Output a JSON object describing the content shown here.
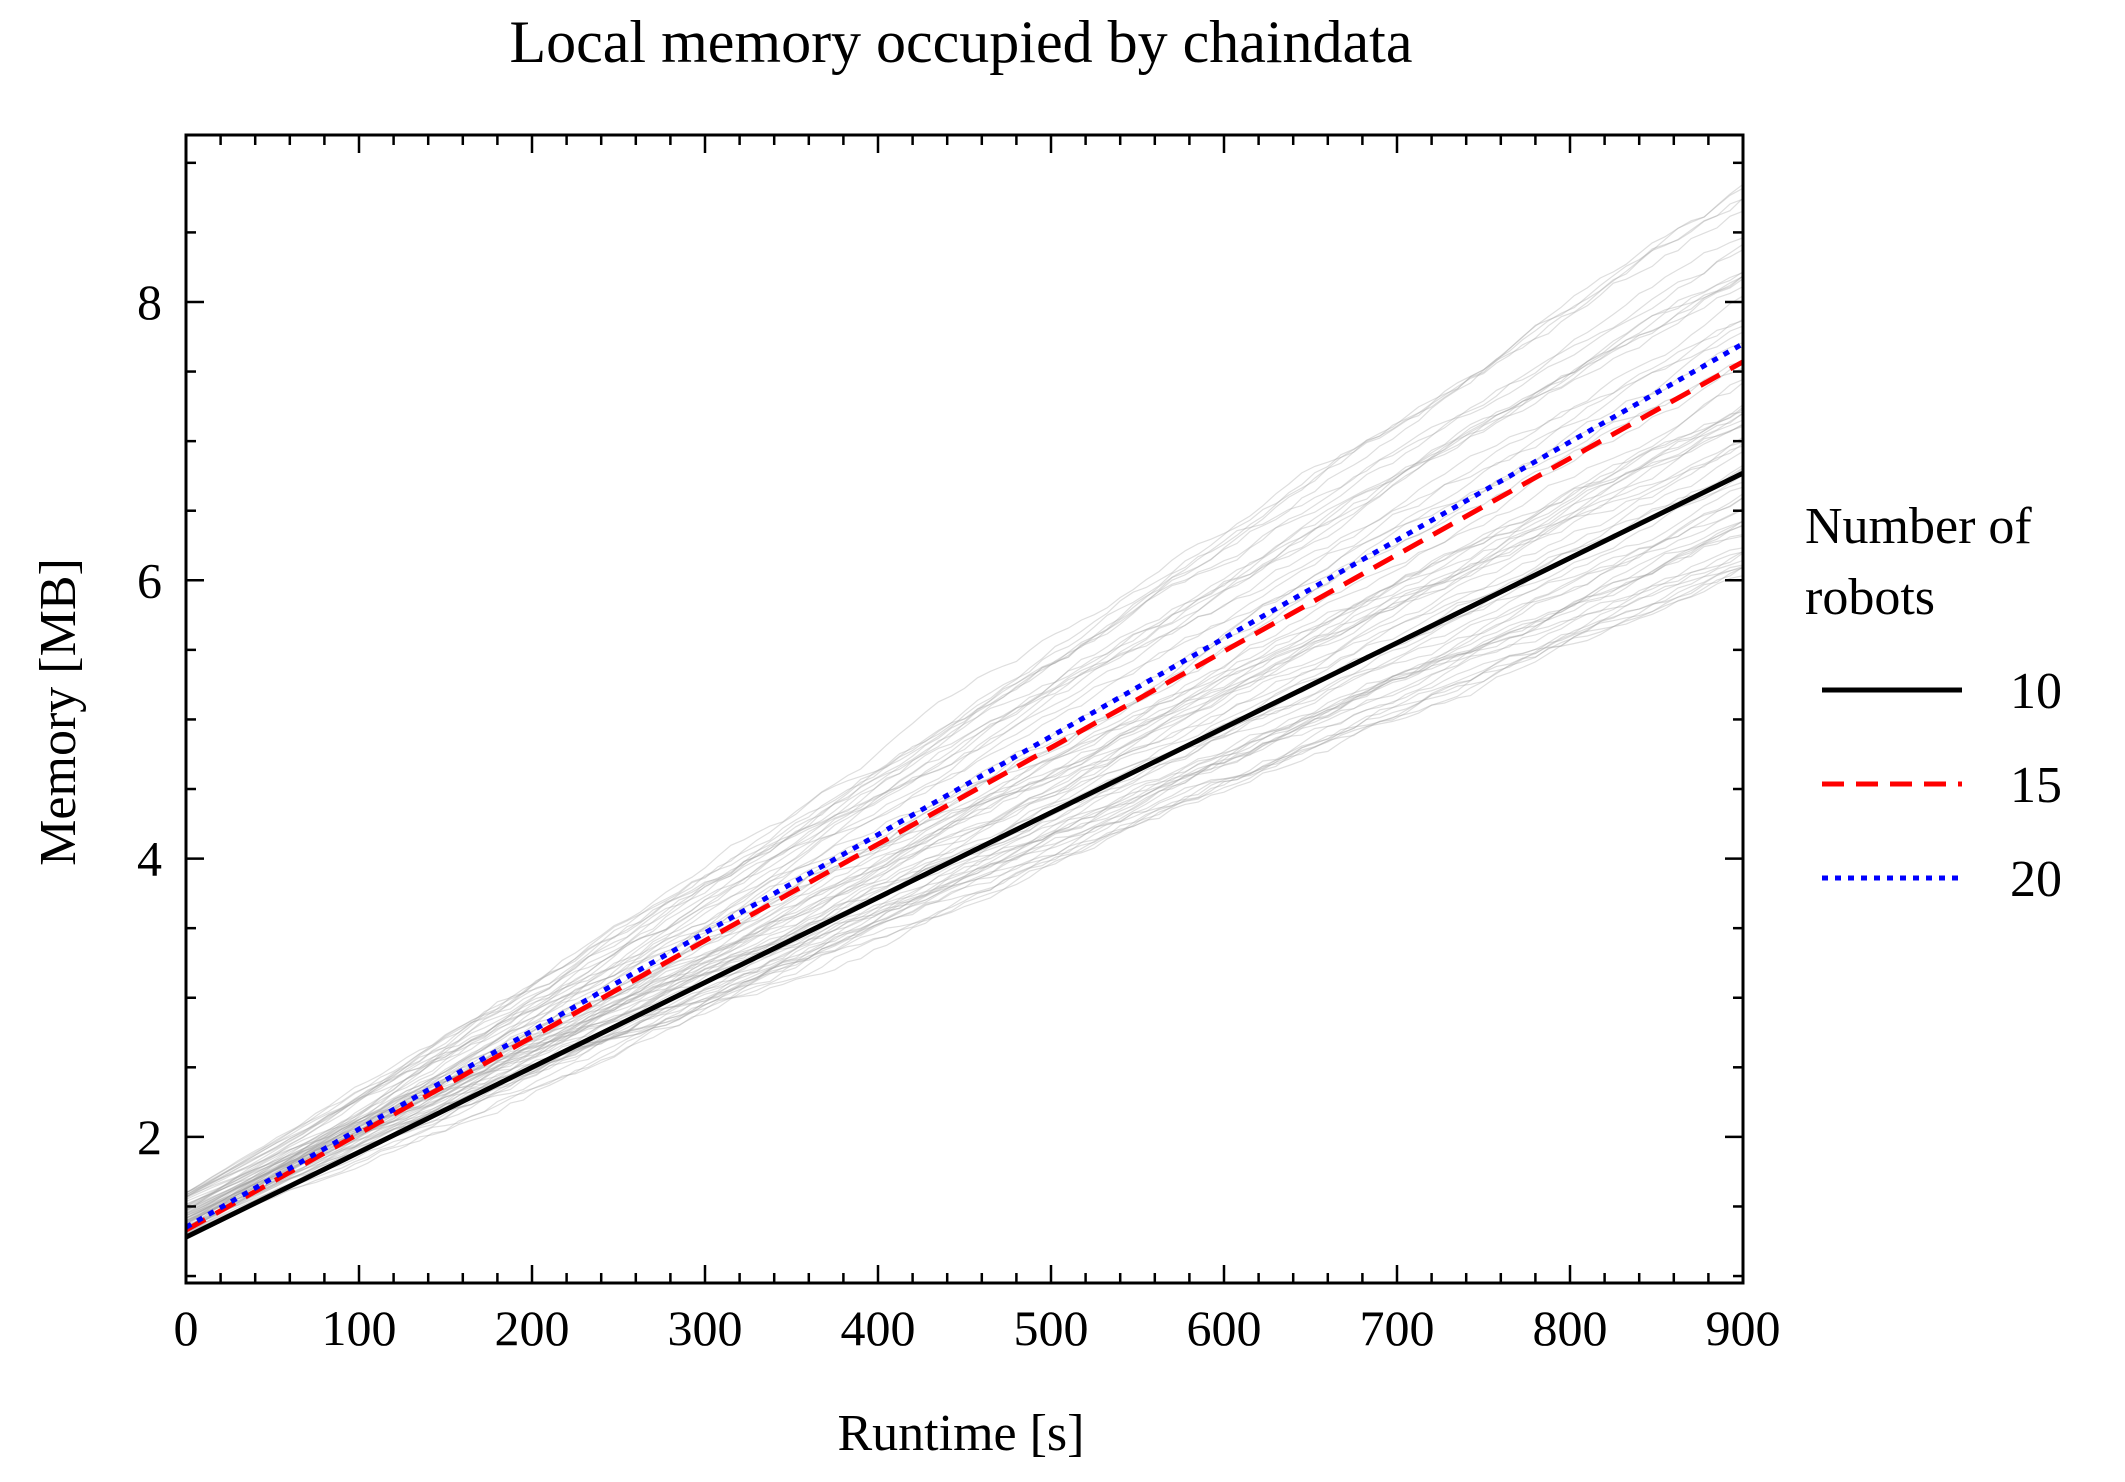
{
  "chart_data": {
    "type": "line",
    "title": "Local memory occupied by chaindata",
    "xlabel": "Runtime [s]",
    "ylabel": "Memory [MB]",
    "xlim": [
      0,
      900
    ],
    "ylim": [
      0.95,
      9.2
    ],
    "x_ticks": [
      0,
      100,
      200,
      300,
      400,
      500,
      600,
      700,
      800,
      900
    ],
    "y_ticks": [
      2,
      4,
      6,
      8
    ],
    "grid": false,
    "legend": {
      "title": "Number of robots",
      "title_lines": [
        "Number of",
        "robots"
      ],
      "placement": "outside-right"
    },
    "series": [
      {
        "name": "10",
        "color": "#000000",
        "style": "solid",
        "x": [
          0,
          900
        ],
        "values": [
          1.28,
          6.77
        ]
      },
      {
        "name": "15",
        "color": "#ff0000",
        "style": "dashed",
        "x": [
          0,
          900
        ],
        "values": [
          1.33,
          7.57
        ]
      },
      {
        "name": "20",
        "color": "#0000ff",
        "style": "dotted",
        "x": [
          0,
          900
        ],
        "values": [
          1.35,
          7.7
        ]
      }
    ],
    "background_traces": {
      "color": "#a0a0a0",
      "description_free": true,
      "start_range": [
        1.3,
        1.6
      ],
      "end_range": [
        6.0,
        8.8
      ]
    }
  }
}
